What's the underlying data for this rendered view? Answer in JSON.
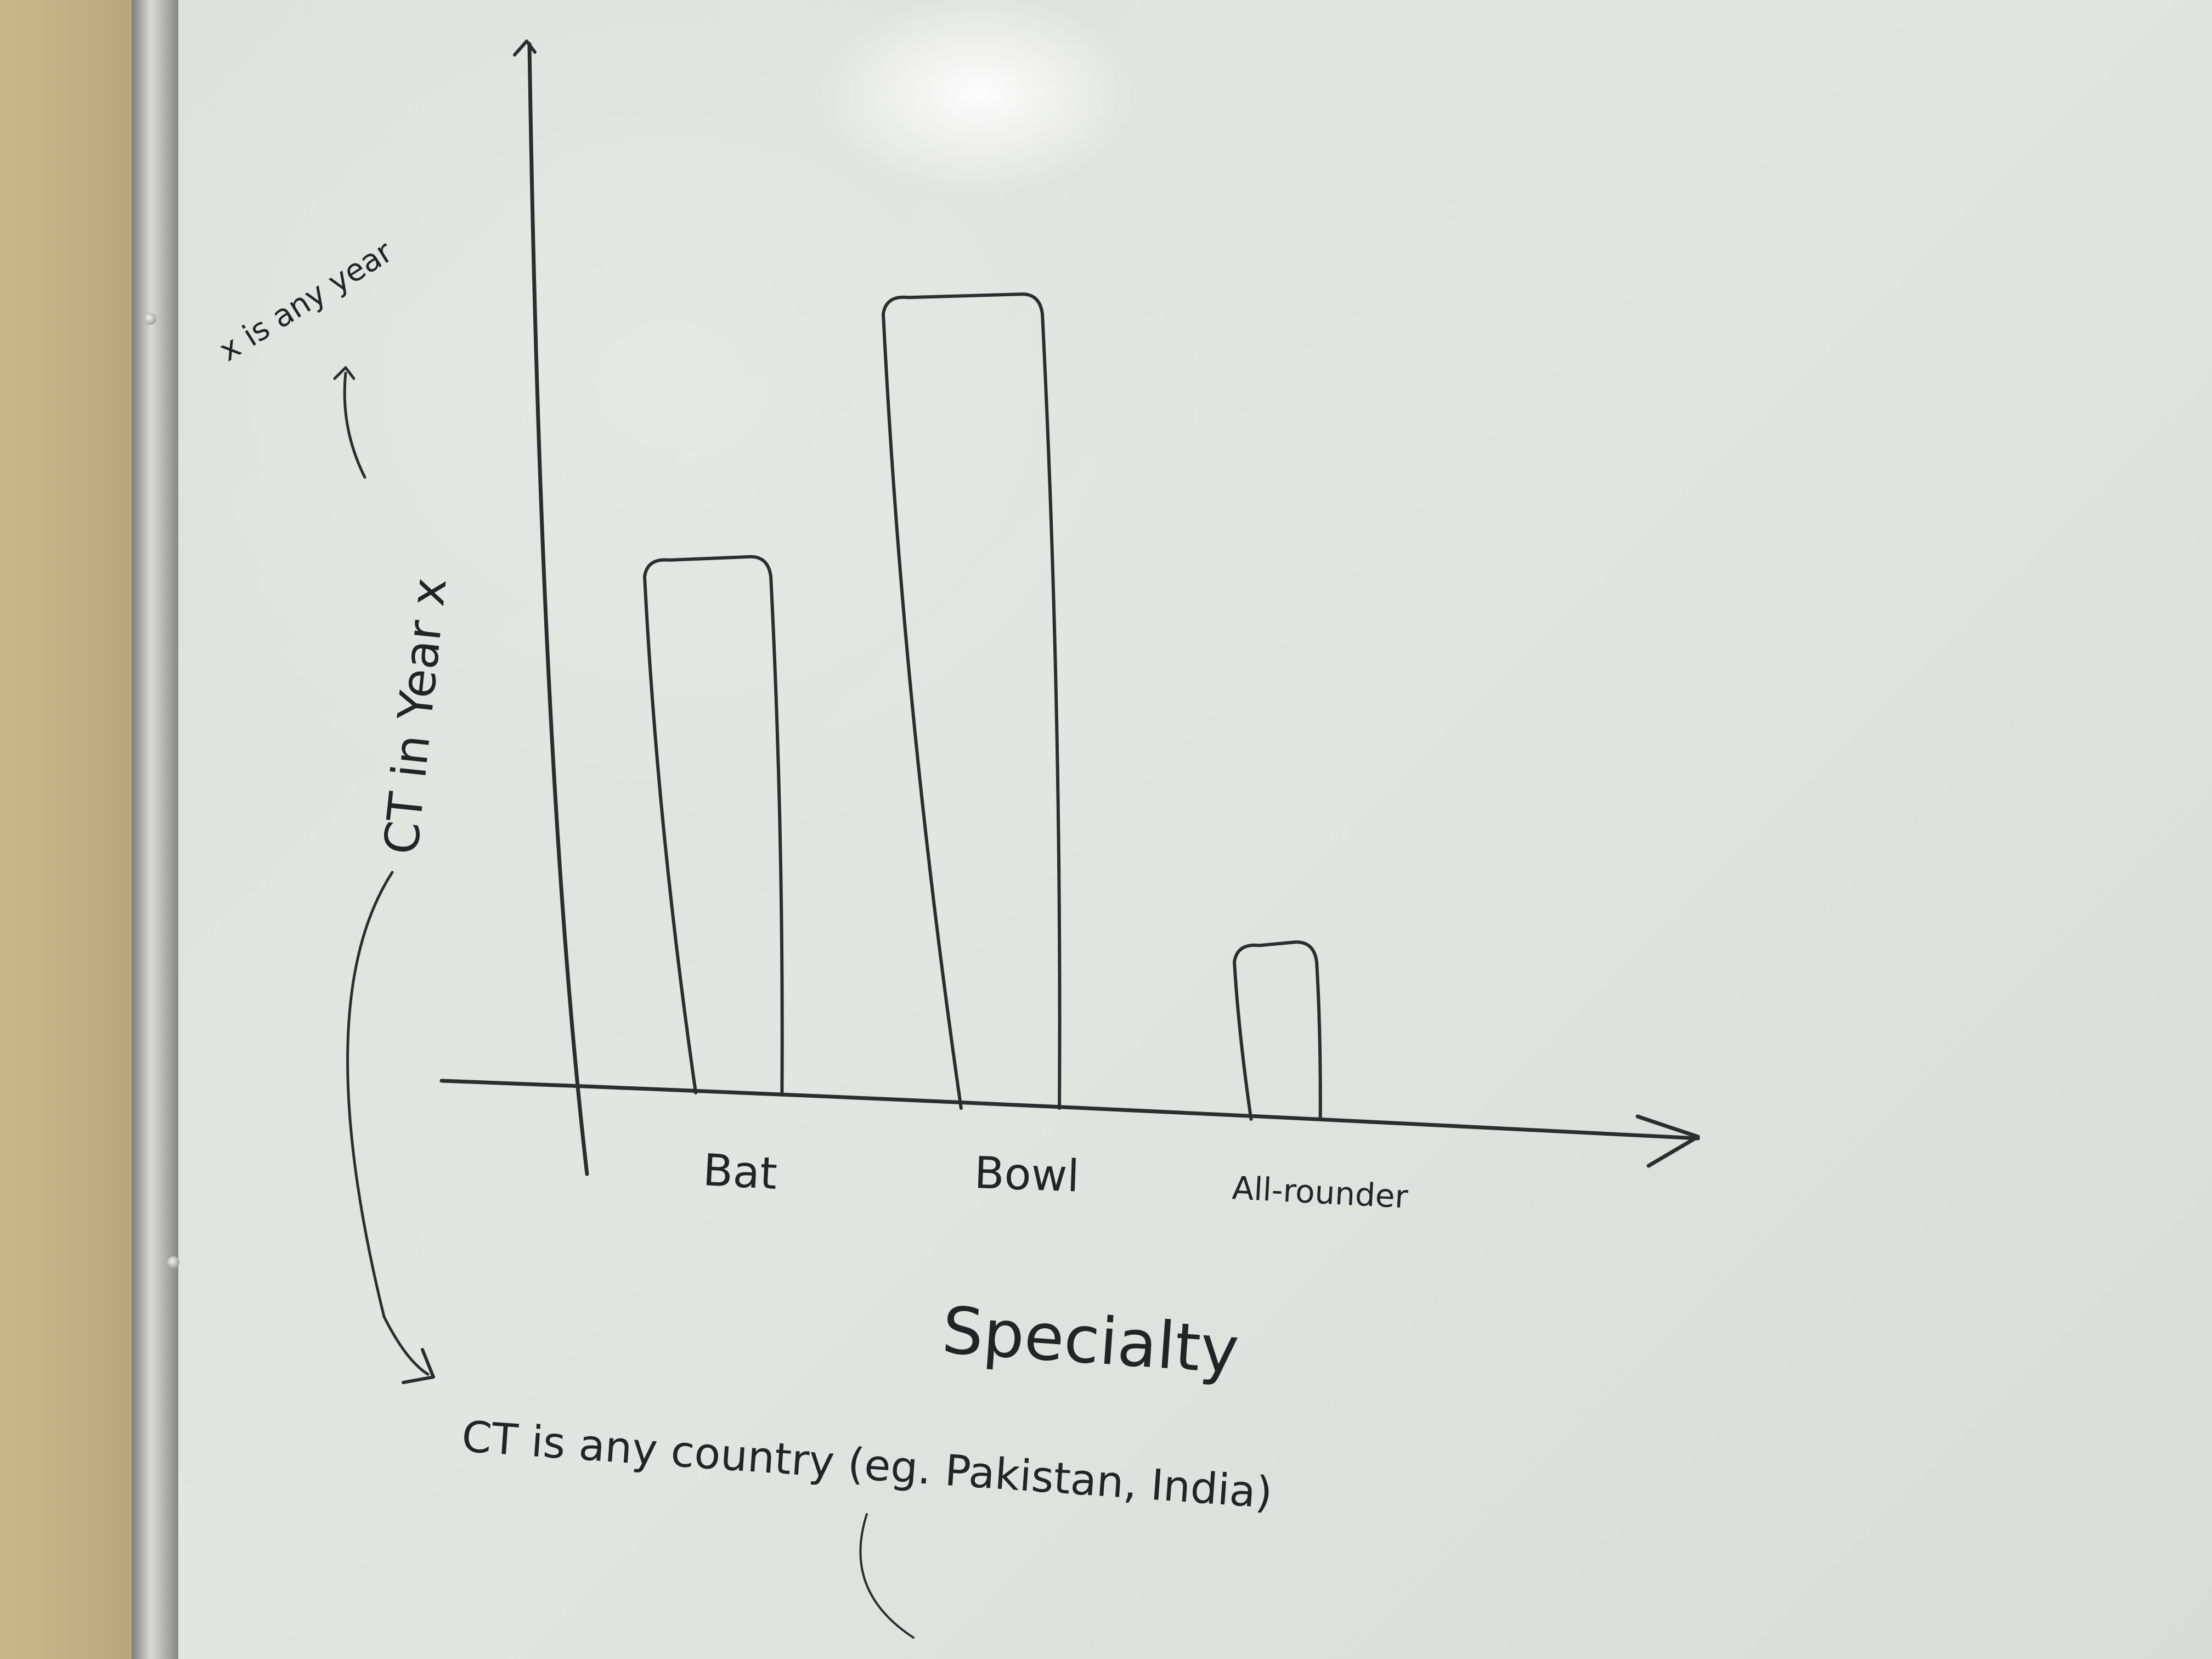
{
  "chart_data": {
    "type": "bar",
    "categories": [
      "Bat",
      "Bowl",
      "All-rounder"
    ],
    "values": [
      9.2,
      14.0,
      3.0
    ],
    "xlabel": "Specialty",
    "ylabel": "CT in Year x",
    "annotations": [
      "x is any year",
      "CT is any country (eg. Pakistan, India)"
    ],
    "ylim": [
      0,
      18
    ],
    "grid": false,
    "legend": "none",
    "colors": {
      "ink": "#2b2d2f",
      "board": "#e1e3e0"
    }
  }
}
